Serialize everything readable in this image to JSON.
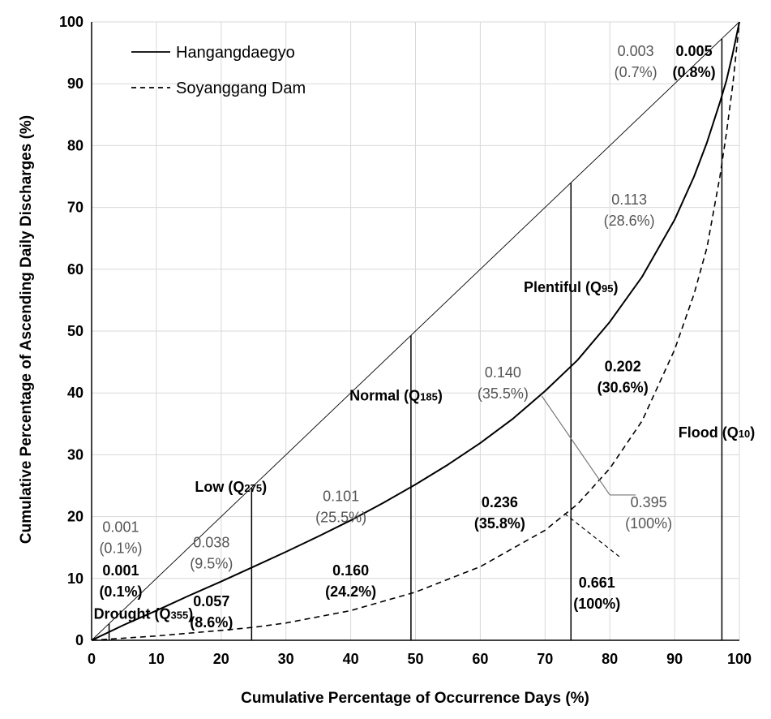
{
  "chart_data": {
    "type": "line",
    "xlabel": "Cumulative Percentage of Occurrence Days (%)",
    "ylabel": "Cumulative Percentage of Ascending Daily Discharges (%)",
    "xlim": [
      0,
      100
    ],
    "ylim": [
      0,
      100
    ],
    "x_ticks": [
      "0",
      "10",
      "20",
      "30",
      "40",
      "50",
      "60",
      "70",
      "80",
      "90",
      "100"
    ],
    "y_ticks": [
      "0",
      "10",
      "20",
      "30",
      "40",
      "50",
      "60",
      "70",
      "80",
      "90",
      "100"
    ],
    "grid": true,
    "legend_position": "top-left",
    "series": [
      {
        "name": "Hangangdaegyo",
        "style": "solid",
        "x": [
          0,
          5,
          10,
          15,
          20,
          25,
          30,
          35,
          40,
          45,
          50,
          55,
          60,
          65,
          70,
          75,
          80,
          85,
          90,
          93,
          95,
          97,
          98,
          99,
          100
        ],
        "y": [
          0,
          2.5,
          4.8,
          7.2,
          9.5,
          11.9,
          14.3,
          16.8,
          19.4,
          22.2,
          25.2,
          28.4,
          31.9,
          35.8,
          40.3,
          45.3,
          51.5,
          58.8,
          68.0,
          75.0,
          80.5,
          87.0,
          90.5,
          95.0,
          100
        ]
      },
      {
        "name": "Soyanggang Dam",
        "style": "dashed",
        "x": [
          0,
          10,
          20,
          25,
          30,
          40,
          50,
          60,
          70,
          75,
          80,
          85,
          90,
          93,
          95,
          97,
          98,
          99,
          100
        ],
        "y": [
          0,
          0.7,
          1.6,
          2.1,
          2.8,
          4.8,
          7.8,
          11.9,
          17.8,
          22.0,
          27.8,
          35.5,
          47.0,
          56.0,
          63.5,
          75.0,
          82.0,
          90.0,
          100
        ]
      },
      {
        "name": "",
        "style": "thin-solid",
        "x": [
          0,
          100
        ],
        "y": [
          0,
          100
        ]
      }
    ],
    "vertical_lines": [
      {
        "label": "Drought (Q",
        "sub": "355",
        "x": 2.7,
        "top": 2.7
      },
      {
        "label": "Low (Q",
        "sub": "275",
        "x": 24.7,
        "top": 24.7
      },
      {
        "label": "Normal (Q",
        "sub": "185",
        "x": 49.3,
        "top": 49.3
      },
      {
        "label": "Plentiful (Q",
        "sub": "95",
        "x": 74.0,
        "top": 74.0
      },
      {
        "label": "Flood (Q",
        "sub": "10",
        "x": 97.3,
        "top": 97.3
      }
    ],
    "annotations": [
      {
        "value": "0.001",
        "pct": "(0.1%)",
        "x": 4.5,
        "y": 17.5,
        "bold": false
      },
      {
        "value": "0.001",
        "pct": "(0.1%)",
        "x": 4.5,
        "y": 10.5,
        "bold": true
      },
      {
        "value": "0.038",
        "pct": "(9.5%)",
        "x": 18.5,
        "y": 15.0,
        "bold": false
      },
      {
        "value": "0.057",
        "pct": "(8.6%)",
        "x": 18.5,
        "y": 5.5,
        "bold": true
      },
      {
        "value": "0.101",
        "pct": "(25.5%)",
        "x": 38.5,
        "y": 22.5,
        "bold": false
      },
      {
        "value": "0.160",
        "pct": "(24.2%)",
        "x": 40.0,
        "y": 10.5,
        "bold": true
      },
      {
        "value": "0.236",
        "pct": "(35.8%)",
        "x": 63.0,
        "y": 21.5,
        "bold": true
      },
      {
        "value": "0.140",
        "pct": "(35.5%)",
        "x": 63.5,
        "y": 42.5,
        "bold": false
      },
      {
        "value": "0.113",
        "pct": "(28.6%)",
        "x": 83.0,
        "y": 70.5,
        "bold": false
      },
      {
        "value": "0.202",
        "pct": "(30.6%)",
        "x": 82.0,
        "y": 43.5,
        "bold": true
      },
      {
        "value": "0.661",
        "pct": "(100%)",
        "x": 78.0,
        "y": 8.5,
        "bold": true
      },
      {
        "value": "0.395",
        "pct": "(100%)",
        "x": 86.0,
        "y": 21.5,
        "bold": false
      },
      {
        "value": "0.003",
        "pct": "(0.7%)",
        "x": 84.0,
        "y": 94.5,
        "bold": false
      },
      {
        "value": "0.005",
        "pct": "(0.8%)",
        "x": 93.0,
        "y": 94.5,
        "bold": true
      }
    ],
    "leaders": [
      {
        "x1": 69.5,
        "y1": 39.5,
        "x2": 80.0,
        "y2": 23.5,
        "style": "solid"
      },
      {
        "x1": 80.0,
        "y1": 23.5,
        "x2": 84.0,
        "y2": 23.5,
        "style": "solid"
      },
      {
        "x1": 73.0,
        "y1": 20.5,
        "x2": 81.5,
        "y2": 13.5,
        "style": "dashed"
      }
    ]
  }
}
